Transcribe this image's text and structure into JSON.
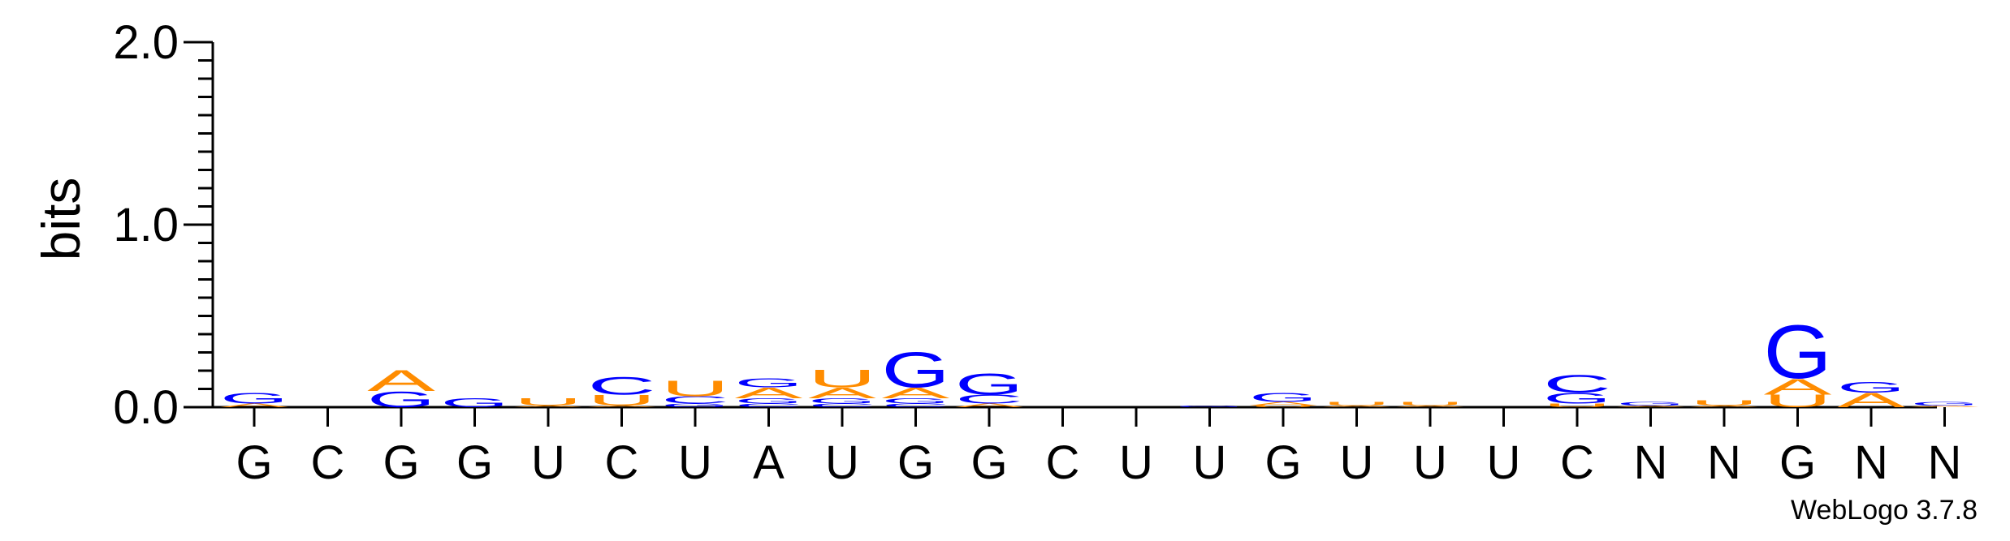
{
  "chart_data": {
    "type": "sequence-logo",
    "ylabel": "bits",
    "ylim": [
      0,
      2.0
    ],
    "yticks": [
      "0.0",
      "1.0",
      "2.0"
    ],
    "ytick_values": [
      0,
      1,
      2
    ],
    "consensus": [
      "G",
      "C",
      "G",
      "G",
      "U",
      "C",
      "U",
      "A",
      "U",
      "G",
      "G",
      "C",
      "U",
      "U",
      "G",
      "U",
      "U",
      "U",
      "C",
      "N",
      "N",
      "G",
      "N",
      "N"
    ],
    "colors": {
      "G": "#0000ff",
      "C": "#0000ff",
      "A": "#ff8c00",
      "U": "#ff8c00"
    },
    "positions": [
      {
        "stack": [
          [
            "A",
            0.02
          ],
          [
            "G",
            0.06
          ]
        ]
      },
      {
        "stack": []
      },
      {
        "stack": [
          [
            "G",
            0.09
          ],
          [
            "A",
            0.12
          ]
        ]
      },
      {
        "stack": [
          [
            "G",
            0.05
          ]
        ]
      },
      {
        "stack": [
          [
            "A",
            0.01
          ],
          [
            "U",
            0.04
          ]
        ]
      },
      {
        "stack": [
          [
            "A",
            0.01
          ],
          [
            "U",
            0.06
          ],
          [
            "C",
            0.1
          ]
        ]
      },
      {
        "stack": [
          [
            "G",
            0.02
          ],
          [
            "C",
            0.04
          ],
          [
            "U",
            0.09
          ]
        ]
      },
      {
        "stack": [
          [
            "C",
            0.02
          ],
          [
            "G",
            0.03
          ],
          [
            "A",
            0.06
          ],
          [
            "G",
            0.05
          ]
        ]
      },
      {
        "stack": [
          [
            "C",
            0.02
          ],
          [
            "G",
            0.03
          ],
          [
            "A",
            0.06
          ],
          [
            "U",
            0.1
          ]
        ]
      },
      {
        "stack": [
          [
            "C",
            0.02
          ],
          [
            "G",
            0.03
          ],
          [
            "A",
            0.06
          ],
          [
            "G",
            0.2
          ]
        ]
      },
      {
        "stack": [
          [
            "A",
            0.02
          ],
          [
            "C",
            0.05
          ],
          [
            "G",
            0.12
          ]
        ]
      },
      {
        "stack": []
      },
      {
        "stack": []
      },
      {
        "stack": [
          [
            "G",
            0.01
          ]
        ]
      },
      {
        "stack": [
          [
            "U",
            0.01
          ],
          [
            "A",
            0.02
          ],
          [
            "G",
            0.05
          ]
        ]
      },
      {
        "stack": [
          [
            "A",
            0.01
          ],
          [
            "U",
            0.02
          ]
        ]
      },
      {
        "stack": [
          [
            "A",
            0.01
          ],
          [
            "U",
            0.02
          ]
        ]
      },
      {
        "stack": []
      },
      {
        "stack": [
          [
            "U",
            0.02
          ],
          [
            "G",
            0.06
          ],
          [
            "C",
            0.1
          ]
        ]
      },
      {
        "stack": [
          [
            "A",
            0.01
          ],
          [
            "G",
            0.02
          ]
        ]
      },
      {
        "stack": [
          [
            "A",
            0.01
          ],
          [
            "U",
            0.03
          ]
        ]
      },
      {
        "stack": [
          [
            "U",
            0.07
          ],
          [
            "A",
            0.09
          ],
          [
            "G",
            0.3
          ]
        ]
      },
      {
        "stack": [
          [
            "A",
            0.08
          ],
          [
            "G",
            0.06
          ]
        ]
      },
      {
        "stack": [
          [
            "A",
            0.01
          ],
          [
            "G",
            0.02
          ]
        ]
      }
    ]
  },
  "footer": {
    "text": "WebLogo 3.7.8"
  }
}
